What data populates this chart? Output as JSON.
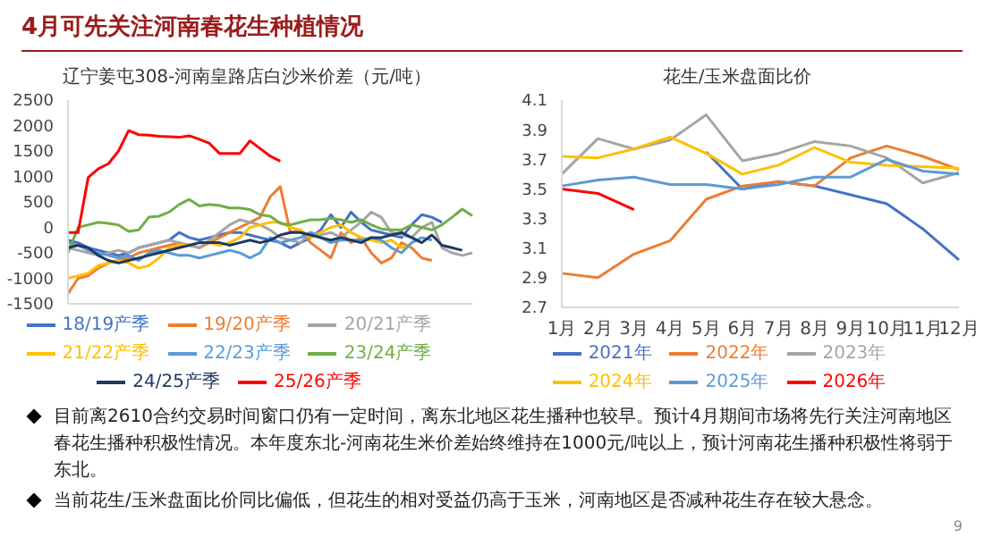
{
  "chart_data": [
    {
      "type": "line",
      "title": "辽宁姜屯308-河南皇路店白沙米价差（元/吨）",
      "annotations": [
        "4月可先关注河南春花生种植情况"
      ],
      "categories": [
        null,
        null,
        null,
        null,
        null,
        null,
        null,
        null,
        null,
        null,
        null,
        null,
        null,
        null,
        null,
        null,
        null,
        null,
        null,
        null,
        null,
        null,
        null,
        null,
        null,
        null,
        null,
        null,
        null,
        null,
        null,
        null,
        null,
        null,
        null,
        null,
        null,
        null,
        null,
        null,
        null
      ],
      "tick_labels": "y",
      "ylim": [
        -1500,
        2500
      ],
      "yticks": [
        -1500,
        -1000,
        -500,
        0,
        500,
        1000,
        1500,
        2000,
        2500
      ],
      "legend": "bottom",
      "marker": "none",
      "series": [
        {
          "name": "18/19产季",
          "color": "#4472c4",
          "values": [
            -250,
            -300,
            -400,
            -450,
            -500,
            -550,
            -500,
            -400,
            -350,
            -300,
            -250,
            -100,
            -200,
            -250,
            -200,
            -150,
            -100,
            -100,
            -150,
            -200,
            -250,
            -300,
            -400,
            -300,
            -200,
            -50,
            250,
            0,
            300,
            100,
            -50,
            -100,
            -150,
            -200,
            50,
            250,
            200,
            100,
            null,
            null,
            null
          ]
        },
        {
          "name": "19/20产季",
          "color": "#ed7d31",
          "values": [
            -1300,
            -1000,
            -950,
            -800,
            -700,
            -650,
            -600,
            -500,
            -450,
            -400,
            -350,
            -300,
            -350,
            -400,
            -300,
            -200,
            -100,
            0,
            100,
            200,
            600,
            800,
            -100,
            -50,
            -300,
            -450,
            -600,
            -100,
            -300,
            -200,
            -500,
            -700,
            -600,
            -300,
            -400,
            -600,
            -650,
            null,
            null,
            null,
            null
          ]
        },
        {
          "name": "20/21产季",
          "color": "#a5a5a5",
          "values": [
            -400,
            -450,
            -500,
            -550,
            -500,
            -450,
            -500,
            -400,
            -350,
            -300,
            -250,
            -300,
            -350,
            -400,
            -250,
            -100,
            50,
            150,
            100,
            50,
            -50,
            -200,
            -250,
            -300,
            -100,
            -150,
            -100,
            -200,
            -50,
            100,
            300,
            200,
            -100,
            -150,
            -200,
            0,
            100,
            -400,
            -500,
            -550,
            -500
          ]
        },
        {
          "name": "21/22产季",
          "color": "#ffc000",
          "values": [
            -1000,
            -950,
            -900,
            -750,
            -700,
            -650,
            -700,
            -800,
            -750,
            -600,
            -400,
            -350,
            -350,
            -300,
            -300,
            -350,
            -300,
            -200,
            0,
            50,
            100,
            100,
            0,
            -50,
            -200,
            -100,
            0,
            50,
            -100,
            -200,
            -250,
            -300,
            -250,
            -400,
            -350,
            null,
            null,
            null,
            null,
            null,
            null
          ]
        },
        {
          "name": "22/23产季",
          "color": "#5b9bd5",
          "values": [
            -300,
            -350,
            -450,
            -500,
            -550,
            -600,
            -550,
            -650,
            -500,
            -450,
            -500,
            -550,
            -550,
            -600,
            -550,
            -500,
            -450,
            -500,
            -600,
            -500,
            -200,
            -300,
            -250,
            -200,
            -100,
            -200,
            -300,
            -250,
            -250,
            -250,
            -200,
            -250,
            -400,
            -500,
            -300,
            -200,
            -250,
            null,
            null,
            null,
            null
          ]
        },
        {
          "name": "23/24产季",
          "color": "#70ad47",
          "values": [
            -500,
            0,
            50,
            100,
            80,
            50,
            -80,
            -50,
            200,
            220,
            300,
            450,
            550,
            420,
            450,
            430,
            380,
            380,
            350,
            250,
            220,
            80,
            50,
            100,
            150,
            150,
            180,
            150,
            100,
            150,
            50,
            -30,
            -50,
            -50,
            50,
            0,
            -50,
            50,
            200,
            360,
            230
          ]
        },
        {
          "name": "24/25产季",
          "color": "#1f3864",
          "values": [
            -400,
            -350,
            -400,
            -550,
            -650,
            -700,
            -650,
            -600,
            -550,
            -500,
            -450,
            -400,
            -350,
            -300,
            -300,
            -300,
            -350,
            -300,
            -250,
            -300,
            -250,
            -150,
            -100,
            -100,
            -150,
            -200,
            -250,
            -200,
            -250,
            -300,
            -200,
            -200,
            -150,
            -100,
            -200,
            -300,
            -150,
            -350,
            -400,
            -450,
            null
          ]
        },
        {
          "name": "25/26产季",
          "color": "#ff0000",
          "values": [
            -100,
            -100,
            980,
            1150,
            1250,
            1500,
            1900,
            1820,
            1810,
            1790,
            1780,
            1770,
            1800,
            1730,
            1650,
            1450,
            1450,
            1450,
            1700,
            1550,
            1400,
            1300,
            null,
            null,
            null,
            null,
            null,
            null,
            null,
            null,
            null,
            null,
            null,
            null,
            null,
            null,
            null,
            null,
            null,
            null,
            null
          ]
        }
      ]
    },
    {
      "type": "line",
      "title": "花生/玉米盘面比价",
      "annotations": [
        "目前离2610合约交易时间窗口仍有一定时间，离东北地区花生播种也较早。预计4月期间市场将先行关注河南地区春花生播种积极性情况。本年度东北-河南花生米价差始终维持在1000元/吨以上，预计河南花生播种积极性将弱于东北。",
        "当前花生/玉米盘面比价同比偏低，但花生的相对受益仍高于玉米，河南地区是否减种花生存在较大悬念。",
        "9"
      ],
      "categories": [
        "1月",
        "2月",
        "3月",
        "4月",
        "5月",
        "6月",
        "7月",
        "8月",
        "9月",
        "10月",
        "11月",
        "12月"
      ],
      "ylim": [
        2.7,
        4.1
      ],
      "yticks": [
        2.7,
        2.9,
        3.1,
        3.3,
        3.5,
        3.7,
        3.9,
        4.1
      ],
      "legend": "bottom",
      "marker": "none",
      "series": [
        {
          "name": "2021年",
          "color": "#4472c4",
          "values": [
            null,
            null,
            null,
            null,
            3.75,
            3.5,
            3.55,
            3.52,
            3.46,
            3.4,
            3.23,
            3.02
          ]
        },
        {
          "name": "2022年",
          "color": "#ed7d31",
          "values": [
            2.93,
            2.9,
            3.06,
            3.15,
            3.43,
            3.52,
            3.55,
            3.52,
            3.71,
            3.79,
            3.72,
            3.63
          ]
        },
        {
          "name": "2023年",
          "color": "#a5a5a5",
          "values": [
            3.6,
            3.84,
            3.77,
            3.83,
            4.0,
            3.69,
            3.74,
            3.82,
            3.79,
            3.71,
            3.54,
            3.61
          ]
        },
        {
          "name": "2024年",
          "color": "#ffc000",
          "values": [
            3.72,
            3.71,
            3.77,
            3.85,
            3.74,
            3.6,
            3.66,
            3.78,
            3.68,
            3.66,
            3.65,
            3.64
          ]
        },
        {
          "name": "2025年",
          "color": "#5b9bd5",
          "values": [
            3.52,
            3.56,
            3.58,
            3.53,
            3.53,
            3.5,
            3.53,
            3.58,
            3.58,
            3.7,
            3.62,
            3.6
          ]
        },
        {
          "name": "2026年",
          "color": "#ff0000",
          "values": [
            3.5,
            3.47,
            3.36,
            null,
            null,
            null,
            null,
            null,
            null,
            null,
            null,
            null
          ]
        }
      ]
    }
  ]
}
